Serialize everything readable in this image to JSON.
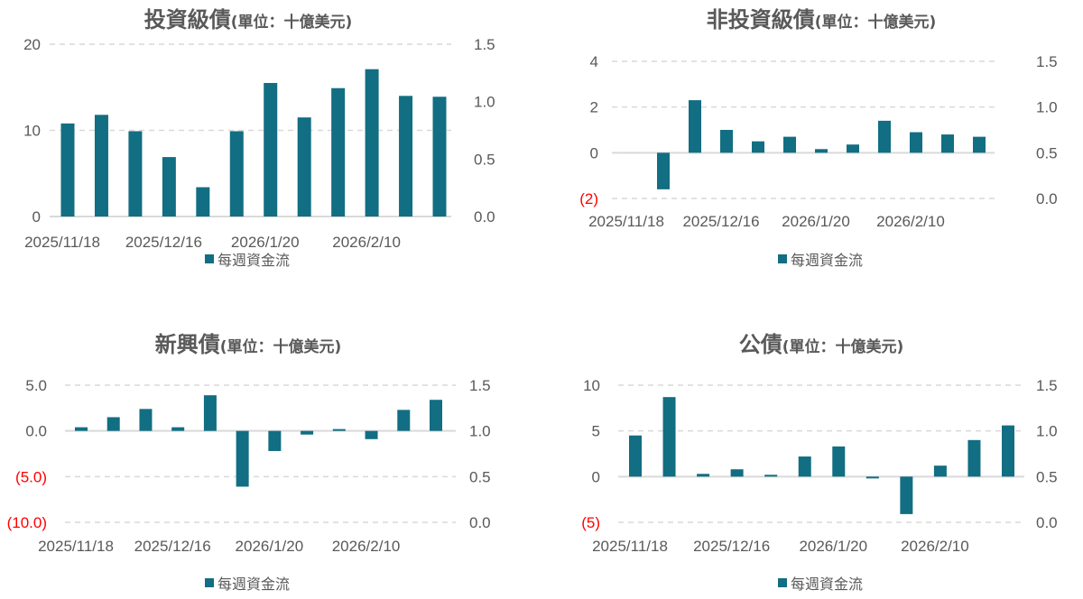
{
  "colors": {
    "bar": "#126E82",
    "grid": "#d9d9d9",
    "text": "#595959",
    "negative": "#ff0000"
  },
  "chart_data": [
    {
      "type": "bar",
      "title": "投資級債",
      "unit": "(單位：十億美元)",
      "legend": "每週資金流",
      "legend_position": "bottom",
      "x_tick_labels": [
        "2025/11/18",
        "",
        "",
        "2025/12/16",
        "",
        "",
        "2026/1/20",
        "",
        "",
        "2026/2/10",
        "",
        ""
      ],
      "values": [
        10.8,
        11.8,
        9.9,
        6.9,
        3.4,
        9.9,
        15.5,
        11.5,
        14.9,
        17.1,
        14.0,
        13.9
      ],
      "ylim": [
        0,
        20
      ],
      "y_ticks": [
        {
          "value": 0,
          "label": "0"
        },
        {
          "value": 10,
          "label": "10"
        },
        {
          "value": 20,
          "label": "20"
        }
      ],
      "y2_ticks": [
        "0.0",
        "0.5",
        "1.0",
        "1.5"
      ],
      "grid": true
    },
    {
      "type": "bar",
      "title": "非投資級債",
      "unit": "(單位：十億美元)",
      "legend": "每週資金流",
      "legend_position": "bottom",
      "x_tick_labels": [
        "2025/11/18",
        "",
        "",
        "2025/12/16",
        "",
        "",
        "2026/1/20",
        "",
        "",
        "2026/2/10",
        "",
        ""
      ],
      "values": [
        0.0,
        -1.6,
        2.3,
        1.0,
        0.5,
        0.7,
        0.16,
        0.36,
        1.4,
        0.9,
        0.8,
        0.7
      ],
      "ylim": [
        -2,
        4
      ],
      "y_ticks": [
        {
          "value": -2,
          "label": "(2)"
        },
        {
          "value": 0,
          "label": "0"
        },
        {
          "value": 2,
          "label": "2"
        },
        {
          "value": 4,
          "label": "4"
        }
      ],
      "y2_ticks": [
        "0.0",
        "0.5",
        "1.0",
        "1.5"
      ],
      "grid": true
    },
    {
      "type": "bar",
      "title": "新興債",
      "unit": "(單位：十億美元)",
      "legend": "每週資金流",
      "legend_position": "bottom",
      "x_tick_labels": [
        "2025/11/18",
        "",
        "",
        "2025/12/16",
        "",
        "",
        "2026/1/20",
        "",
        "",
        "2026/2/10",
        "",
        ""
      ],
      "values": [
        0.4,
        1.5,
        2.4,
        0.4,
        3.9,
        -6.1,
        -2.2,
        -0.4,
        0.2,
        -0.9,
        2.3,
        3.4
      ],
      "ylim": [
        -10,
        5
      ],
      "y_ticks": [
        {
          "value": -10,
          "label": "(10.0)"
        },
        {
          "value": -5,
          "label": "(5.0)"
        },
        {
          "value": 0,
          "label": "0.0"
        },
        {
          "value": 5,
          "label": "5.0"
        }
      ],
      "y2_ticks": [
        "0.0",
        "0.5",
        "1.0",
        "1.5"
      ],
      "grid": true
    },
    {
      "type": "bar",
      "title": "公債",
      "unit": "(單位：十億美元)",
      "legend": "每週資金流",
      "legend_position": "bottom",
      "x_tick_labels": [
        "2025/11/18",
        "",
        "",
        "2025/12/16",
        "",
        "",
        "2026/1/20",
        "",
        "",
        "2026/2/10",
        "",
        ""
      ],
      "values": [
        4.5,
        8.7,
        0.3,
        0.8,
        0.2,
        2.2,
        3.3,
        -0.2,
        -4.1,
        1.2,
        4.0,
        5.6
      ],
      "ylim": [
        -5,
        10
      ],
      "y_ticks": [
        {
          "value": -5,
          "label": "(5)"
        },
        {
          "value": 0,
          "label": "0"
        },
        {
          "value": 5,
          "label": "5"
        },
        {
          "value": 10,
          "label": "10"
        }
      ],
      "y2_ticks": [
        "0.0",
        "0.5",
        "1.0",
        "1.5"
      ],
      "grid": true
    }
  ]
}
